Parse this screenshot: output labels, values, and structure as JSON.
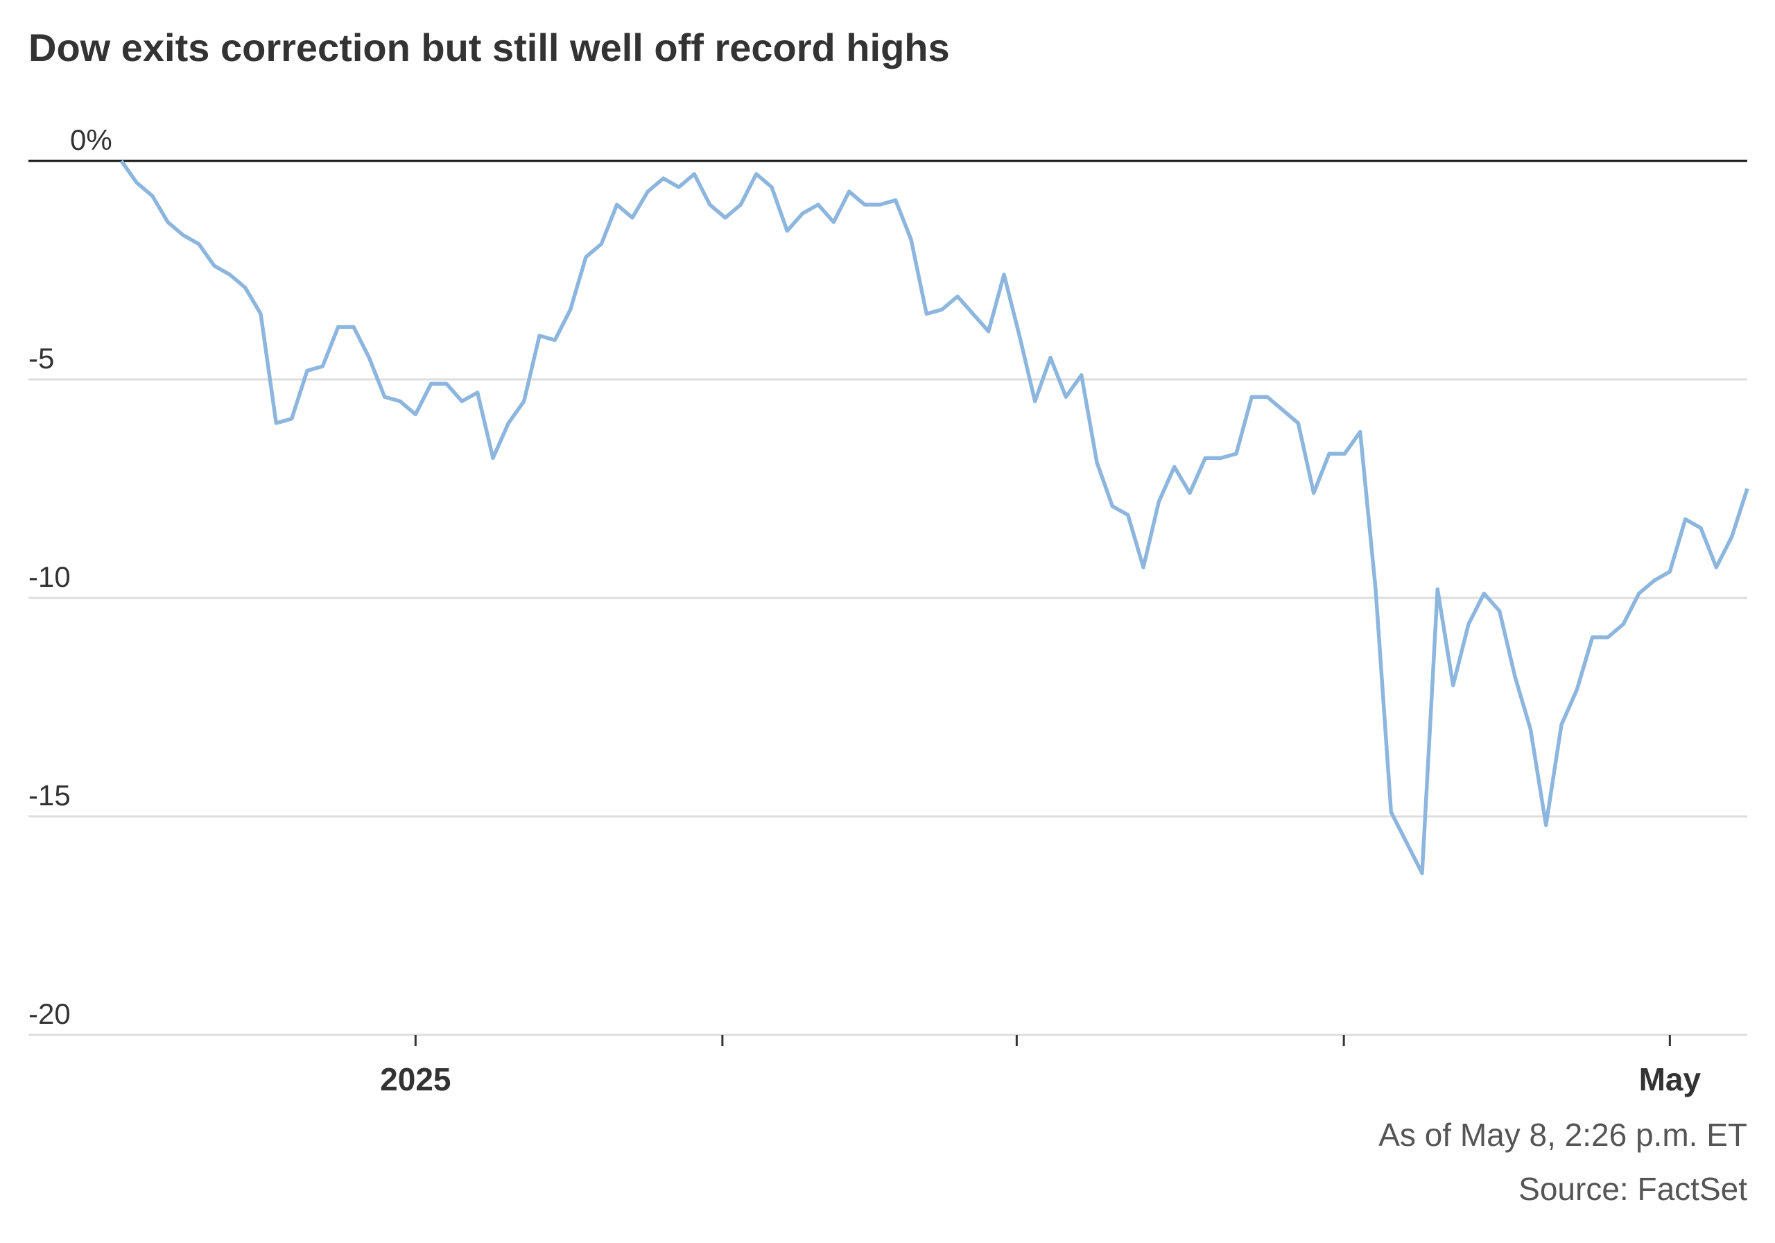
{
  "chart_data": {
    "type": "line",
    "title": "Dow exits correction but still well off record highs",
    "notes": [
      "As of May 8, 2:26 p.m. ET",
      "Source: FactSet"
    ],
    "categories": [
      null,
      null,
      null,
      null,
      null,
      null,
      null,
      null,
      null,
      null,
      null,
      null,
      null,
      null,
      null,
      null,
      null,
      null,
      null,
      "2025",
      null,
      null,
      null,
      null,
      null,
      null,
      null,
      null,
      null,
      null,
      null,
      null,
      null,
      null,
      null,
      null,
      null,
      null,
      null,
      null,
      null,
      null,
      null,
      null,
      null,
      null,
      null,
      null,
      null,
      null,
      null,
      null,
      null,
      null,
      null,
      null,
      null,
      null,
      null,
      null,
      null,
      null,
      null,
      null,
      null,
      null,
      null,
      null,
      null,
      null,
      null,
      null,
      null,
      null,
      null,
      null,
      null,
      null,
      null,
      null,
      null,
      null,
      null,
      null,
      null,
      null,
      null,
      null,
      null,
      null,
      null,
      null,
      null,
      null,
      null,
      null,
      null,
      null,
      null,
      null,
      "May",
      null,
      null,
      null,
      null,
      null
    ],
    "series": [
      {
        "color": "#8db6df",
        "values": [
          0,
          -0.5,
          -0.8,
          -1.4,
          -1.7,
          -1.9,
          -2.4,
          -2.6,
          -2.9,
          -3.5,
          -6.0,
          -5.9,
          -4.8,
          -4.7,
          -3.8,
          -3.8,
          -4.5,
          -5.4,
          -5.5,
          -5.8,
          -5.1,
          -5.1,
          -5.5,
          -5.3,
          -6.8,
          -6.0,
          -5.5,
          -4.0,
          -4.1,
          -3.4,
          -2.2,
          -1.9,
          -1.0,
          -1.3,
          -0.7,
          -0.4,
          -0.6,
          -0.3,
          -1.0,
          -1.3,
          -1.0,
          -0.3,
          -0.6,
          -1.6,
          -1.2,
          -1.0,
          -1.4,
          -0.7,
          -1.0,
          -1.0,
          -0.9,
          -1.8,
          -3.5,
          -3.4,
          -3.1,
          -3.5,
          -3.9,
          -2.6,
          -4.0,
          -5.5,
          -4.5,
          -5.4,
          -4.9,
          -6.9,
          -7.9,
          -8.1,
          -9.3,
          -7.8,
          -7.0,
          -7.6,
          -6.8,
          -6.8,
          -6.7,
          -5.4,
          -5.4,
          -5.7,
          -6.0,
          -7.6,
          -6.7,
          -6.7,
          -6.2,
          -9.8,
          -14.9,
          -15.6,
          -16.3,
          -9.8,
          -12.0,
          -10.6,
          -9.9,
          -10.3,
          -11.8,
          -13.0,
          -15.2,
          -12.9,
          -12.1,
          -10.9,
          -10.9,
          -10.6,
          -9.9,
          -9.6,
          -9.4,
          -8.2,
          -8.4,
          -9.3,
          -8.6,
          -7.5
        ]
      }
    ],
    "ylim": [
      -20,
      0
    ],
    "yticks": [
      {
        "value": 0,
        "label": "0%"
      },
      -5,
      -10,
      -15,
      -20
    ],
    "grid": true
  }
}
